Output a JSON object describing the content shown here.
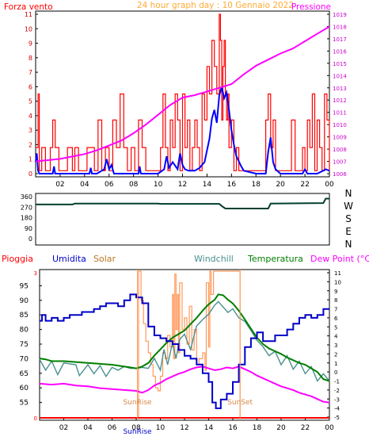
{
  "colors": {
    "background": "#ffffff",
    "plot_border": "#000000",
    "wind": "#ff0000",
    "wind_avg": "#0000ff",
    "pressure": "#ff00ff",
    "direction": "#003f2f",
    "humidity": "#0000c8",
    "solar": "#ff9a5c",
    "windchill": "#4a8f8f",
    "temperature": "#007f00",
    "dewpoint": "#ff00ff",
    "rain": "#ff0000"
  },
  "time_ticks": [
    "02",
    "04",
    "06",
    "08",
    "10",
    "12",
    "14",
    "16",
    "18",
    "20",
    "22",
    "00"
  ],
  "chart_data": [
    {
      "type": "line",
      "title": "24 hour graph day : 10 Gennaio 2022",
      "left_label": "Forza vento",
      "right_label": "Pressione",
      "xlim": [
        0,
        24
      ],
      "ylim": [
        0,
        11
      ],
      "y_ticks": [
        "0",
        "1",
        "2",
        "3",
        "4",
        "5",
        "6",
        "7",
        "8",
        "9",
        "10",
        "11"
      ],
      "y2lim": [
        1006,
        1019
      ],
      "y2_ticks": [
        "1006",
        "1007",
        "1008",
        "1009",
        "1010",
        "1011",
        "1012",
        "1013",
        "1014",
        "1015",
        "1016",
        "1017",
        "1018",
        "1019"
      ],
      "series": [
        {
          "key": "gust",
          "axis": "left",
          "x": [
            0,
            0.2,
            0.3,
            0.5,
            0.8,
            1.2,
            1.4,
            1.6,
            1.9,
            2.3,
            2.6,
            3,
            3.2,
            3.5,
            3.8,
            4.2,
            4.5,
            4.8,
            5.1,
            5.4,
            5.7,
            6,
            6.3,
            6.6,
            6.9,
            7.2,
            7.5,
            7.8,
            8.1,
            8.4,
            8.7,
            9,
            9.3,
            9.6,
            9.9,
            10.2,
            10.4,
            10.6,
            10.8,
            11,
            11.2,
            11.4,
            11.6,
            11.8,
            12,
            12.2,
            12.4,
            12.6,
            12.8,
            13,
            13.2,
            13.4,
            13.6,
            13.8,
            14,
            14.2,
            14.4,
            14.6,
            14.8,
            15,
            15.1,
            15.2,
            15.3,
            15.4,
            15.5,
            15.6,
            15.7,
            15.8,
            16,
            16.2,
            16.4,
            16.6,
            16.8,
            17,
            17.3,
            17.6,
            17.9,
            18.2,
            18.5,
            18.8,
            19,
            19.2,
            19.4,
            19.6,
            19.8,
            20,
            20.3,
            20.6,
            20.9,
            21.2,
            21.5,
            21.8,
            22,
            22.2,
            22.4,
            22.6,
            22.8,
            23,
            23.2,
            23.4,
            23.6,
            23.8,
            24
          ],
          "y": [
            1.8,
            5.5,
            0.2,
            1.8,
            0.2,
            1.8,
            3.7,
            1.8,
            0.2,
            0.2,
            1.8,
            0.2,
            1.8,
            0.2,
            0.2,
            1.8,
            1.8,
            0.2,
            3.7,
            0.2,
            1.8,
            0.2,
            3.7,
            1.8,
            5.5,
            1.8,
            0.2,
            1.8,
            0.2,
            3.7,
            1.8,
            0.2,
            0.2,
            0.2,
            0.2,
            1.8,
            5.5,
            1.8,
            0.2,
            3.7,
            1.8,
            5.5,
            3.7,
            0.2,
            5.5,
            1.8,
            3.7,
            0.2,
            1.8,
            3.7,
            1.8,
            0.2,
            5.5,
            3.7,
            7.4,
            5.5,
            9.2,
            7.4,
            5.5,
            11,
            9.2,
            3.7,
            7.4,
            9.2,
            5.5,
            3.7,
            5.5,
            1.8,
            3.7,
            0.2,
            1.8,
            0.2,
            0.2,
            0.2,
            0.2,
            0.2,
            0.2,
            0.2,
            0.2,
            3.7,
            5.5,
            1.8,
            3.7,
            0.2,
            0.2,
            0.2,
            0.2,
            0.2,
            3.7,
            0.2,
            0.2,
            1.8,
            0.2,
            3.7,
            1.8,
            5.5,
            0.2,
            3.7,
            1.8,
            0.2,
            5.5,
            3.7,
            0.2
          ]
        },
        {
          "key": "wind_avg",
          "axis": "left",
          "x": [
            0,
            0.1,
            0.2,
            0.3,
            0.5,
            1,
            1.4,
            1.5,
            1.6,
            2,
            4,
            4.4,
            4.5,
            4.6,
            5,
            5.6,
            5.8,
            6,
            6.2,
            6.4,
            7,
            8,
            8.4,
            8.5,
            8.6,
            9,
            10,
            10.5,
            10.7,
            10.9,
            11.2,
            11.6,
            11.8,
            12,
            12.2,
            12.5,
            13,
            13.4,
            13.8,
            14.2,
            14.4,
            14.6,
            14.8,
            15,
            15.2,
            15.4,
            15.6,
            15.8,
            16,
            16.2,
            16.4,
            16.8,
            17,
            18,
            18.8,
            19,
            19.2,
            19.4,
            19.6,
            20,
            21,
            21.8,
            22,
            22.2,
            23,
            23.5,
            23.7,
            24
          ],
          "y": [
            0.8,
            1.4,
            0.2,
            0,
            0,
            0,
            0,
            0.5,
            0,
            0,
            0,
            0,
            0.4,
            0,
            0,
            0.3,
            1,
            0.3,
            0.6,
            0,
            0,
            0,
            0,
            0.5,
            0,
            0,
            0,
            0.3,
            1.2,
            0.4,
            0.8,
            0.3,
            1.4,
            0.6,
            0.3,
            0.2,
            0.2,
            0.4,
            0.8,
            2.4,
            3.8,
            4.4,
            3.5,
            5.4,
            6,
            5.2,
            5.6,
            4.4,
            3,
            2,
            1.2,
            0.5,
            0.2,
            0,
            0,
            1.5,
            2.5,
            0.8,
            0.3,
            0,
            0,
            0,
            0.3,
            0,
            0,
            0.2,
            0.3,
            0.2
          ]
        },
        {
          "key": "pressure",
          "axis": "right",
          "x": [
            0,
            1,
            2,
            3,
            4,
            5,
            6,
            7,
            8,
            9,
            10,
            11,
            12,
            13,
            14,
            15,
            16,
            17,
            18,
            19,
            20,
            21,
            22,
            23,
            24
          ],
          "y": [
            1007,
            1007.1,
            1007.2,
            1007.4,
            1007.6,
            1007.9,
            1008.3,
            1008.7,
            1009.3,
            1010,
            1010.8,
            1011.6,
            1012.2,
            1012.4,
            1012.7,
            1013,
            1013.3,
            1014.1,
            1014.8,
            1015.3,
            1015.8,
            1016.2,
            1016.8,
            1017.4,
            1018
          ]
        }
      ]
    },
    {
      "type": "line",
      "y_ticks": [
        "0",
        "90",
        "180",
        "270",
        "360"
      ],
      "ylim": [
        0,
        360
      ],
      "compass": [
        "N",
        "W",
        "S",
        "E",
        "N"
      ],
      "xlim": [
        0,
        24
      ],
      "series": [
        {
          "key": "direction",
          "x": [
            0,
            3,
            3.2,
            10,
            10.2,
            15,
            15.2,
            15.5,
            19,
            19.2,
            23.5,
            23.7,
            24
          ],
          "y": [
            293,
            293,
            300,
            300,
            298,
            298,
            280,
            258,
            258,
            300,
            305,
            343,
            343
          ]
        }
      ]
    },
    {
      "type": "line",
      "labels": {
        "rain": "Pioggia",
        "humidity": "Umidita",
        "solar": "Solar",
        "windchill": "Windchill",
        "temperature": "Temperatura",
        "dewpoint": "Dew Point (°C)"
      },
      "annotations": [
        "SunRise",
        "SunSet",
        "SunRise"
      ],
      "xlim": [
        0,
        24
      ],
      "ylim": [
        50,
        100
      ],
      "y_ticks": [
        "55",
        "60",
        "65",
        "70",
        "75",
        "80",
        "85",
        "90",
        "95"
      ],
      "y_ticks_rain": [
        "0",
        "3"
      ],
      "y2lim": [
        -5,
        11
      ],
      "y2_ticks": [
        "-5",
        "-4",
        "-3",
        "-2",
        "-1",
        "0",
        "1",
        "2",
        "3",
        "4",
        "5",
        "6",
        "7",
        "8",
        "9",
        "10",
        "11"
      ],
      "sunrise": 8.1,
      "sunset": 16.6,
      "series": [
        {
          "key": "humidity",
          "axis": "left",
          "x": [
            0,
            0.2,
            0.5,
            1,
            1.5,
            2,
            2.5,
            3,
            3.5,
            4,
            4.5,
            5,
            5.5,
            6,
            6.5,
            7,
            7.5,
            8,
            8.5,
            9,
            9.5,
            10,
            10.5,
            11,
            11.5,
            12,
            12.5,
            13,
            13.5,
            14,
            14.3,
            14.6,
            15,
            15.5,
            16,
            16.5,
            17,
            17.5,
            18,
            18.5,
            19,
            19.5,
            20,
            20.5,
            21,
            21.5,
            22,
            22.5,
            23,
            23.5,
            24
          ],
          "y": [
            83,
            85,
            83,
            84,
            83,
            84,
            85,
            85,
            86,
            86,
            87,
            88,
            89,
            89,
            88,
            90,
            92,
            91,
            89,
            81,
            78,
            77,
            76,
            75,
            73,
            71,
            70,
            68,
            65,
            62,
            55,
            53,
            56,
            58,
            62,
            68,
            74,
            77,
            79,
            76,
            76,
            78,
            78,
            80,
            82,
            84,
            85,
            84,
            85,
            87,
            87
          ]
        },
        {
          "key": "temperature",
          "axis": "right",
          "x": [
            0,
            0.5,
            1,
            2,
            3,
            4,
            5,
            6,
            7,
            7.5,
            8,
            8.5,
            9,
            9.5,
            10,
            10.5,
            11,
            11.5,
            12,
            12.5,
            13,
            13.5,
            14,
            14.5,
            14.8,
            15.2,
            15.6,
            16,
            16.5,
            17,
            17.5,
            18,
            18.5,
            19,
            19.5,
            20,
            20.5,
            21,
            21.5,
            22,
            22.5,
            23,
            23.5,
            24
          ],
          "y": [
            1.5,
            1.4,
            1.2,
            1.2,
            1.1,
            1,
            0.9,
            0.8,
            0.6,
            0.5,
            0.4,
            0.6,
            1,
            1.8,
            2.5,
            3.2,
            3.8,
            4.2,
            4.6,
            5.3,
            6,
            6.8,
            7.5,
            8,
            8.6,
            8.5,
            8,
            7.6,
            6.8,
            5.8,
            4.8,
            3.8,
            3.1,
            2.6,
            2.3,
            2,
            1.6,
            1.3,
            1,
            0.8,
            0.4,
            0,
            -0.8,
            -1
          ]
        },
        {
          "key": "windchill",
          "axis": "right",
          "x": [
            0,
            0.5,
            1,
            1.5,
            2,
            3,
            3.3,
            4,
            4.5,
            5,
            5.5,
            6,
            6.5,
            7,
            7.5,
            8,
            8.5,
            9,
            9.5,
            10,
            10.3,
            10.6,
            11,
            11.3,
            11.6,
            12,
            12.5,
            13,
            13.5,
            14,
            14.5,
            14.8,
            15.2,
            15.6,
            16,
            16.5,
            17,
            17.5,
            18,
            18.5,
            19,
            19.5,
            20,
            20.5,
            21,
            21.5,
            22,
            22.5,
            23,
            23.5,
            24
          ],
          "y": [
            1.4,
            0.2,
            1.2,
            -0.3,
            1,
            0.8,
            -0.4,
            0.8,
            -0.2,
            0.7,
            -0.5,
            0.5,
            0.2,
            0.6,
            0.4,
            0.4,
            0.5,
            0.4,
            1.5,
            0.2,
            2.5,
            0.8,
            3.2,
            1.5,
            3.6,
            4.2,
            2.5,
            5.1,
            5.8,
            6.4,
            7.4,
            7.8,
            7.2,
            6.6,
            7,
            6,
            5.6,
            4.6,
            3.5,
            2.8,
            1.8,
            2.3,
            0.8,
            1.8,
            0.3,
            1.2,
            -0.2,
            0.6,
            -1,
            -0.2,
            -1
          ]
        },
        {
          "key": "dewpoint",
          "axis": "right",
          "x": [
            0,
            1,
            2,
            3,
            4,
            5,
            6,
            7,
            8,
            8.5,
            9,
            9.5,
            10,
            10.5,
            11,
            11.5,
            12,
            12.5,
            13,
            13.5,
            14,
            14.5,
            15,
            15.5,
            16,
            16.5,
            17,
            17.5,
            18,
            18.5,
            19,
            19.5,
            20,
            20.5,
            21,
            21.5,
            22,
            22.5,
            23,
            23.5,
            24
          ],
          "y": [
            -1.3,
            -1.4,
            -1.3,
            -1.5,
            -1.6,
            -1.8,
            -1.9,
            -2,
            -2.1,
            -2.3,
            -2,
            -1.5,
            -1.2,
            -0.8,
            -0.5,
            -0.2,
            0,
            0.3,
            0.5,
            0.6,
            0.4,
            0.2,
            0.3,
            0.5,
            0.4,
            0.6,
            0.3,
            0,
            -0.4,
            -0.7,
            -1,
            -1.3,
            -1.6,
            -1.8,
            -2,
            -2.3,
            -2.5,
            -2.7,
            -3,
            -3.3,
            -3.4
          ]
        },
        {
          "key": "solar",
          "axis": "left",
          "x": [
            8.1,
            8.2,
            8.4,
            8.6,
            8.8,
            9,
            9.2,
            9.4,
            9.6,
            9.8,
            10,
            10.2,
            10.4,
            10.6,
            10.8,
            11,
            11.1,
            11.2,
            11.3,
            11.4,
            11.5,
            11.6,
            11.8,
            12,
            12.2,
            12.4,
            12.6,
            12.8,
            13,
            13.2,
            13.5,
            13.7,
            13.8,
            14,
            14.1,
            14.2,
            14.4,
            14.6,
            14.8,
            15,
            15.2,
            15.4,
            15.6,
            15.8,
            16,
            16.3,
            16.6
          ],
          "y": [
            50,
            100,
            90,
            82,
            76,
            72,
            68,
            64,
            60,
            59,
            64,
            72,
            70,
            78,
            74,
            92,
            70,
            99,
            80,
            92,
            72,
            96,
            80,
            84,
            75,
            88,
            73,
            80,
            68,
            70,
            72,
            66,
            96,
            74,
            100,
            92,
            100,
            100,
            100,
            100,
            100,
            100,
            100,
            100,
            100,
            100,
            50
          ]
        },
        {
          "key": "rain",
          "axis": "rain",
          "x": [
            0,
            24
          ],
          "y": [
            0,
            0
          ]
        }
      ]
    }
  ]
}
